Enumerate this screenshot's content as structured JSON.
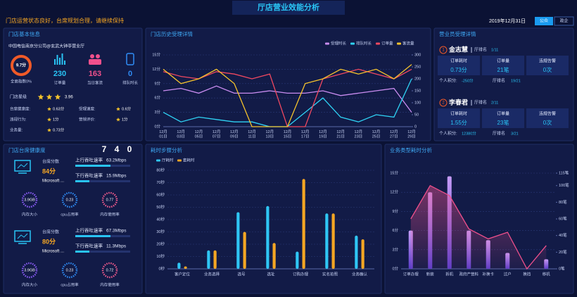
{
  "header": {
    "title": "厅店营业效能分析",
    "message": "门店运营状态良好，台席规划合理，请继续保持",
    "date": "2019年12月31日",
    "tabs": [
      "公众",
      "政企"
    ]
  },
  "store_info": {
    "title": "门店基本信息",
    "store": "中国电信南京分公司@玄武大钟亭营业厅",
    "score": "9.7分",
    "score_caption": "全面指数0%",
    "kpis": [
      {
        "value": "230",
        "label": "订单量"
      },
      {
        "value": "163",
        "label": "当日客流"
      },
      {
        "value": "0",
        "label": "排队时长"
      }
    ],
    "star_label": "门店星级",
    "star_value": "3.96",
    "metrics": [
      {
        "label": "台席健康度:",
        "value": "0.63分"
      },
      {
        "label": "受理速度:",
        "value": "0.6分"
      },
      {
        "label": "违规行为:",
        "value": "1分"
      },
      {
        "label": "营销评价:",
        "value": "1分"
      },
      {
        "label": "业务量:",
        "value": "0.73分"
      }
    ]
  },
  "staff": {
    "title": "营业员受理详情",
    "people": [
      {
        "no": "1",
        "name": "金志慧",
        "rank": "厅排名",
        "rank_value": "1/11",
        "metrics": [
          {
            "label": "订单耗时",
            "value": "0.73分"
          },
          {
            "label": "订单量",
            "value": "21笔"
          },
          {
            "label": "违规告警",
            "value": "0次"
          }
        ],
        "points_label": "个人积分:",
        "points": "-250分",
        "hall_rank_label": "厅排名",
        "hall_rank": "19/21"
      },
      {
        "no": "2",
        "name": "李春君",
        "rank": "厅排名",
        "rank_value": "2/11",
        "metrics": [
          {
            "label": "订单耗时",
            "value": "1.55分"
          },
          {
            "label": "订单量",
            "value": "23笔"
          },
          {
            "label": "违规告警",
            "value": "0次"
          }
        ],
        "points_label": "个人积分:",
        "points": "12380分",
        "hall_rank_label": "厅排名",
        "hall_rank": "3/21"
      }
    ]
  },
  "desk_health": {
    "title": "门店台席健康度",
    "counter": [
      "7",
      "4",
      "0"
    ],
    "desks": [
      {
        "score_label": "台席分数",
        "score": "84分",
        "device": "Microsoft ...",
        "up_label": "上行吞吐速率",
        "up": "63.2Mbps",
        "down_label": "下行吞吐速率",
        "down": "15.9Mbps",
        "gauges": [
          {
            "value": "3.9GB",
            "label": "内存大小"
          },
          {
            "value": "0.23",
            "label": "cpu占用率"
          },
          {
            "value": "0.77",
            "label": "内存使用率"
          }
        ]
      },
      {
        "score_label": "台席分数",
        "score": "80分",
        "device": "Microsoft ...",
        "up_label": "上行吞吐速率",
        "up": "67.3Mbps",
        "down_label": "下行吞吐速率",
        "down": "11.3Mbps",
        "gauges": [
          {
            "value": "3.9GB",
            "label": "内存大小"
          },
          {
            "value": "0.23",
            "label": "cpu占用率"
          },
          {
            "value": "0.72",
            "label": "内存使用率"
          }
        ]
      }
    ]
  },
  "chart_data": [
    {
      "type": "line",
      "title": "门店历史受理详情",
      "categories": [
        "12月01日",
        "12月03日",
        "12月05日",
        "12月07日",
        "12月09日",
        "12月11日",
        "12月13日",
        "12月15日",
        "12月17日",
        "12月19日",
        "12月21日",
        "12月23日",
        "12月25日",
        "12月27日",
        "12月29日"
      ],
      "series": [
        {
          "name": "受理时长",
          "color": "#c98cf0",
          "values": [
            7.5,
            8,
            7,
            8.5,
            7,
            7,
            7.5,
            7,
            7,
            7.5,
            6.5,
            7,
            7.5,
            8,
            3
          ]
        },
        {
          "name": "排队时长",
          "color": "#2fd3f5",
          "values": [
            3,
            1,
            2,
            1.5,
            1,
            1,
            0,
            0,
            3,
            6,
            2,
            1,
            2.5,
            2,
            10
          ]
        },
        {
          "name": "订单量",
          "color": "#f04860",
          "values": [
            11.5,
            10.5,
            10,
            11.5,
            11,
            10,
            11,
            0,
            0,
            10,
            11,
            12,
            11,
            10,
            12
          ]
        },
        {
          "name": "客流量",
          "color": "#f5c32c",
          "values": [
            12,
            9,
            10,
            12,
            9,
            0,
            0,
            0,
            9,
            10,
            12,
            11,
            12,
            10,
            13
          ]
        }
      ],
      "ylim": [
        0,
        15
      ],
      "yticks": [
        {
          "value": 0,
          "label": "0分"
        },
        {
          "value": 3,
          "label": "3分"
        },
        {
          "value": 6,
          "label": "6分"
        },
        {
          "value": 9,
          "label": "9分"
        },
        {
          "value": 12,
          "label": "12分"
        },
        {
          "value": 15,
          "label": "15分"
        }
      ],
      "y2lim": [
        0,
        300
      ],
      "y2ticks": [
        0,
        50,
        100,
        150,
        200,
        250,
        300
      ],
      "grid": true
    },
    {
      "type": "bar",
      "title": "耗时步骤分析",
      "categories": [
        "客户定位",
        "业务选择",
        "选号",
        "选址",
        "订购办理",
        "实名拍照",
        "业务确认"
      ],
      "series": [
        {
          "name": "厅耗时",
          "color": "#2fc6f5",
          "values": [
            5,
            15,
            46,
            51,
            14,
            45,
            27
          ]
        },
        {
          "name": "套耗时",
          "color": "#f5a623",
          "values": [
            2,
            15,
            30,
            21,
            73,
            45,
            24
          ]
        }
      ],
      "ylim": [
        0,
        80
      ],
      "yticks": [
        {
          "value": 0,
          "label": "0秒"
        },
        {
          "value": 10,
          "label": "10秒"
        },
        {
          "value": 20,
          "label": "20秒"
        },
        {
          "value": 30,
          "label": "30秒"
        },
        {
          "value": 40,
          "label": "40秒"
        },
        {
          "value": 50,
          "label": "50秒"
        },
        {
          "value": 60,
          "label": "60秒"
        },
        {
          "value": 70,
          "label": "70秒"
        },
        {
          "value": 80,
          "label": "80秒"
        }
      ],
      "grid": true
    },
    {
      "type": "combo",
      "title": "业务类型耗时分析",
      "categories": [
        "订单办理",
        "新装",
        "拆机",
        "政府产营料",
        "补换卡",
        "过户",
        "换挡",
        "移机"
      ],
      "series": [
        {
          "color": "#9a6cf0",
          "values": [
            6,
            12,
            14.5,
            6,
            4.5,
            2.5,
            0,
            1.5
          ]
        },
        {
          "color": "#f0508c",
          "axis": "y2",
          "values": [
            60,
            100,
            88,
            48,
            36,
            44,
            0,
            28
          ]
        }
      ],
      "ylim": [
        0,
        15
      ],
      "yticks": [
        {
          "value": 0,
          "label": "0分"
        },
        {
          "value": 3,
          "label": "3分"
        },
        {
          "value": 6,
          "label": "6分"
        },
        {
          "value": 9,
          "label": "9分"
        },
        {
          "value": 12,
          "label": "12分"
        },
        {
          "value": 15,
          "label": "15分"
        }
      ],
      "y2lim": [
        0,
        115
      ],
      "y2ticks": [
        {
          "value": 0,
          "label": "0笔"
        },
        {
          "value": 20,
          "label": "20笔"
        },
        {
          "value": 40,
          "label": "40笔"
        },
        {
          "value": 60,
          "label": "60笔"
        },
        {
          "value": 80,
          "label": "80笔"
        },
        {
          "value": 100,
          "label": "100笔"
        },
        {
          "value": 115,
          "label": "115笔"
        }
      ],
      "grid": true
    }
  ]
}
